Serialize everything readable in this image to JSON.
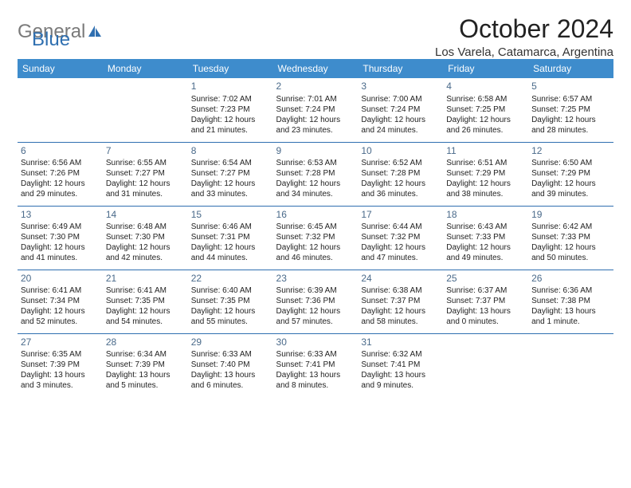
{
  "brand": {
    "part1": "General",
    "part2": "Blue"
  },
  "title": "October 2024",
  "location": "Los Varela, Catamarca, Argentina",
  "colors": {
    "header_bg": "#3e8ccc",
    "header_text": "#ffffff",
    "daynum": "#4a6a8a",
    "row_sep": "#2f6fb0",
    "logo_gray": "#7a7a7a",
    "logo_blue": "#2f6fb0",
    "body_text": "#222222",
    "background": "#ffffff"
  },
  "typography": {
    "title_fontsize": 32,
    "location_fontsize": 15,
    "dayheader_fontsize": 12,
    "daynum_fontsize": 12,
    "cell_fontsize": 10
  },
  "day_headers": [
    "Sunday",
    "Monday",
    "Tuesday",
    "Wednesday",
    "Thursday",
    "Friday",
    "Saturday"
  ],
  "weeks": [
    [
      null,
      null,
      {
        "n": "1",
        "sunrise": "Sunrise: 7:02 AM",
        "sunset": "Sunset: 7:23 PM",
        "daylight": "Daylight: 12 hours and 21 minutes."
      },
      {
        "n": "2",
        "sunrise": "Sunrise: 7:01 AM",
        "sunset": "Sunset: 7:24 PM",
        "daylight": "Daylight: 12 hours and 23 minutes."
      },
      {
        "n": "3",
        "sunrise": "Sunrise: 7:00 AM",
        "sunset": "Sunset: 7:24 PM",
        "daylight": "Daylight: 12 hours and 24 minutes."
      },
      {
        "n": "4",
        "sunrise": "Sunrise: 6:58 AM",
        "sunset": "Sunset: 7:25 PM",
        "daylight": "Daylight: 12 hours and 26 minutes."
      },
      {
        "n": "5",
        "sunrise": "Sunrise: 6:57 AM",
        "sunset": "Sunset: 7:25 PM",
        "daylight": "Daylight: 12 hours and 28 minutes."
      }
    ],
    [
      {
        "n": "6",
        "sunrise": "Sunrise: 6:56 AM",
        "sunset": "Sunset: 7:26 PM",
        "daylight": "Daylight: 12 hours and 29 minutes."
      },
      {
        "n": "7",
        "sunrise": "Sunrise: 6:55 AM",
        "sunset": "Sunset: 7:27 PM",
        "daylight": "Daylight: 12 hours and 31 minutes."
      },
      {
        "n": "8",
        "sunrise": "Sunrise: 6:54 AM",
        "sunset": "Sunset: 7:27 PM",
        "daylight": "Daylight: 12 hours and 33 minutes."
      },
      {
        "n": "9",
        "sunrise": "Sunrise: 6:53 AM",
        "sunset": "Sunset: 7:28 PM",
        "daylight": "Daylight: 12 hours and 34 minutes."
      },
      {
        "n": "10",
        "sunrise": "Sunrise: 6:52 AM",
        "sunset": "Sunset: 7:28 PM",
        "daylight": "Daylight: 12 hours and 36 minutes."
      },
      {
        "n": "11",
        "sunrise": "Sunrise: 6:51 AM",
        "sunset": "Sunset: 7:29 PM",
        "daylight": "Daylight: 12 hours and 38 minutes."
      },
      {
        "n": "12",
        "sunrise": "Sunrise: 6:50 AM",
        "sunset": "Sunset: 7:29 PM",
        "daylight": "Daylight: 12 hours and 39 minutes."
      }
    ],
    [
      {
        "n": "13",
        "sunrise": "Sunrise: 6:49 AM",
        "sunset": "Sunset: 7:30 PM",
        "daylight": "Daylight: 12 hours and 41 minutes."
      },
      {
        "n": "14",
        "sunrise": "Sunrise: 6:48 AM",
        "sunset": "Sunset: 7:30 PM",
        "daylight": "Daylight: 12 hours and 42 minutes."
      },
      {
        "n": "15",
        "sunrise": "Sunrise: 6:46 AM",
        "sunset": "Sunset: 7:31 PM",
        "daylight": "Daylight: 12 hours and 44 minutes."
      },
      {
        "n": "16",
        "sunrise": "Sunrise: 6:45 AM",
        "sunset": "Sunset: 7:32 PM",
        "daylight": "Daylight: 12 hours and 46 minutes."
      },
      {
        "n": "17",
        "sunrise": "Sunrise: 6:44 AM",
        "sunset": "Sunset: 7:32 PM",
        "daylight": "Daylight: 12 hours and 47 minutes."
      },
      {
        "n": "18",
        "sunrise": "Sunrise: 6:43 AM",
        "sunset": "Sunset: 7:33 PM",
        "daylight": "Daylight: 12 hours and 49 minutes."
      },
      {
        "n": "19",
        "sunrise": "Sunrise: 6:42 AM",
        "sunset": "Sunset: 7:33 PM",
        "daylight": "Daylight: 12 hours and 50 minutes."
      }
    ],
    [
      {
        "n": "20",
        "sunrise": "Sunrise: 6:41 AM",
        "sunset": "Sunset: 7:34 PM",
        "daylight": "Daylight: 12 hours and 52 minutes."
      },
      {
        "n": "21",
        "sunrise": "Sunrise: 6:41 AM",
        "sunset": "Sunset: 7:35 PM",
        "daylight": "Daylight: 12 hours and 54 minutes."
      },
      {
        "n": "22",
        "sunrise": "Sunrise: 6:40 AM",
        "sunset": "Sunset: 7:35 PM",
        "daylight": "Daylight: 12 hours and 55 minutes."
      },
      {
        "n": "23",
        "sunrise": "Sunrise: 6:39 AM",
        "sunset": "Sunset: 7:36 PM",
        "daylight": "Daylight: 12 hours and 57 minutes."
      },
      {
        "n": "24",
        "sunrise": "Sunrise: 6:38 AM",
        "sunset": "Sunset: 7:37 PM",
        "daylight": "Daylight: 12 hours and 58 minutes."
      },
      {
        "n": "25",
        "sunrise": "Sunrise: 6:37 AM",
        "sunset": "Sunset: 7:37 PM",
        "daylight": "Daylight: 13 hours and 0 minutes."
      },
      {
        "n": "26",
        "sunrise": "Sunrise: 6:36 AM",
        "sunset": "Sunset: 7:38 PM",
        "daylight": "Daylight: 13 hours and 1 minute."
      }
    ],
    [
      {
        "n": "27",
        "sunrise": "Sunrise: 6:35 AM",
        "sunset": "Sunset: 7:39 PM",
        "daylight": "Daylight: 13 hours and 3 minutes."
      },
      {
        "n": "28",
        "sunrise": "Sunrise: 6:34 AM",
        "sunset": "Sunset: 7:39 PM",
        "daylight": "Daylight: 13 hours and 5 minutes."
      },
      {
        "n": "29",
        "sunrise": "Sunrise: 6:33 AM",
        "sunset": "Sunset: 7:40 PM",
        "daylight": "Daylight: 13 hours and 6 minutes."
      },
      {
        "n": "30",
        "sunrise": "Sunrise: 6:33 AM",
        "sunset": "Sunset: 7:41 PM",
        "daylight": "Daylight: 13 hours and 8 minutes."
      },
      {
        "n": "31",
        "sunrise": "Sunrise: 6:32 AM",
        "sunset": "Sunset: 7:41 PM",
        "daylight": "Daylight: 13 hours and 9 minutes."
      },
      null,
      null
    ]
  ]
}
